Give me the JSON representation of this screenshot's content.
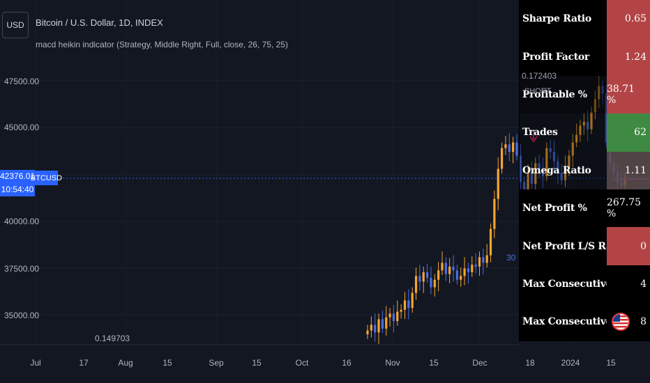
{
  "header": {
    "currency_button": "USD",
    "symbol_title": "Bitcoin / U.S. Dollar, 1D, INDEX",
    "indicator_legend": "macd heikin indicator (Strategy, Middle Right, Full, close, 26, 75, 25)"
  },
  "price_scale": {
    "labels": [
      "47500.00",
      "45000.00",
      "40000.00",
      "37500.00",
      "35000.00"
    ],
    "current_price": "42376.01",
    "countdown": "10:54:40",
    "symbol_tag": "BTCUSD"
  },
  "time_axis": {
    "labels": [
      "Jul",
      "17",
      "Aug",
      "15",
      "Sep",
      "15",
      "Oct",
      "16",
      "Nov",
      "15",
      "Dec",
      "18",
      "2024",
      "15"
    ]
  },
  "overlays": {
    "oscillator_top_value": "0.172403",
    "oscillator_bottom_value": "0.149703",
    "short_signal": "SHORT",
    "bar_count_label": "30"
  },
  "stats": [
    {
      "label": "Sharpe Ratio",
      "value": "0.65",
      "color": "#b24446"
    },
    {
      "label": "Profit Factor",
      "value": "1.24",
      "color": "#b24446"
    },
    {
      "label": "Profitable %",
      "value": "38.71 %",
      "color": "#b24446"
    },
    {
      "label": "Trades",
      "value": "62",
      "color": "#3f8a43"
    },
    {
      "label": "Omega Ratio",
      "value": "1.11",
      "color": "#5d4c4e"
    },
    {
      "label": "Net Profit %",
      "value": "267.75 %",
      "color": "#000000"
    },
    {
      "label": "Net Profit L/S Ratio",
      "value": "0",
      "color": "#b24446"
    },
    {
      "label": "Max Consecutive Wins",
      "value": "4",
      "color": "#000000"
    },
    {
      "label": "Max Consecutive Losses",
      "value": "8",
      "color": "#000000"
    }
  ],
  "colors": {
    "background": "#131722",
    "up_candle": "#f7a531",
    "down_candle": "#4a6fe3",
    "accent": "#2962ff"
  }
}
